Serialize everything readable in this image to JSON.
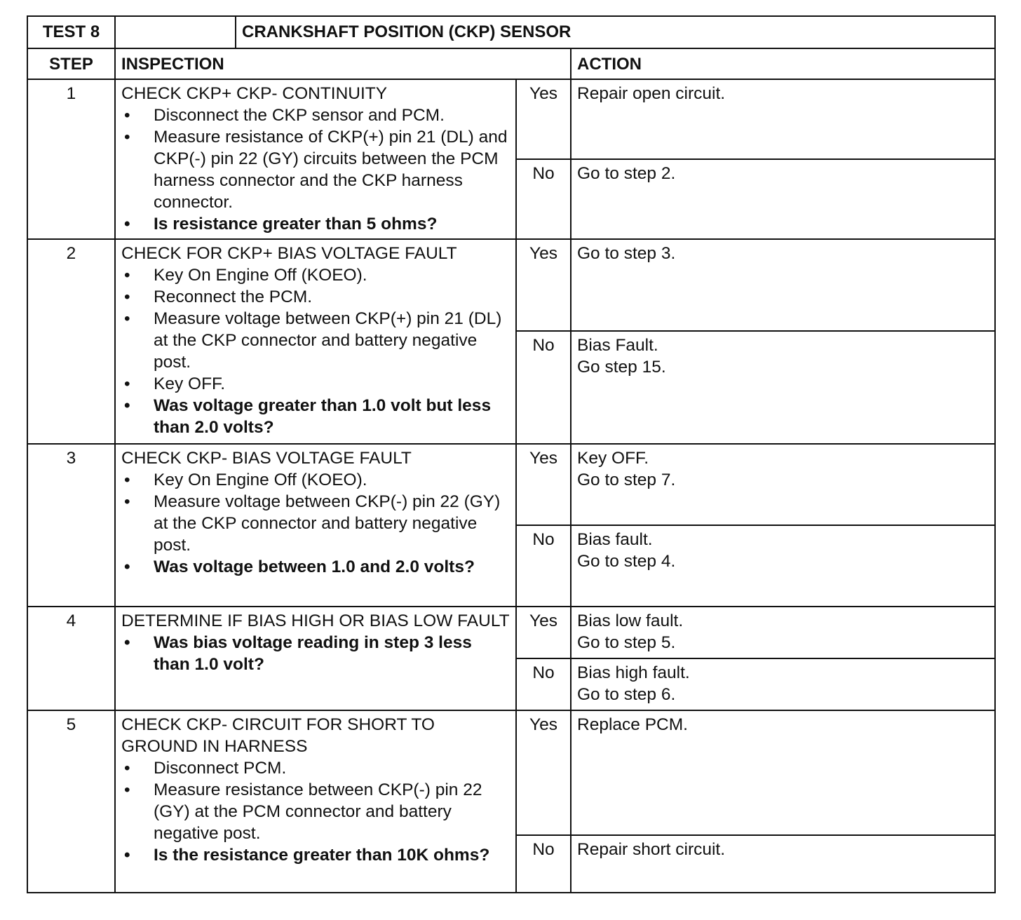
{
  "header": {
    "test": "TEST 8",
    "title": "CRANKSHAFT POSITION (CKP) SENSOR"
  },
  "columns": {
    "step": "STEP",
    "inspection": "INSPECTION",
    "action": "ACTION"
  },
  "steps": [
    {
      "step": "1",
      "title": "CHECK CKP+ CKP- CONTINUITY",
      "bullets": [
        {
          "text": "Disconnect the CKP sensor and PCM.",
          "bold": false
        },
        {
          "text": "Measure resistance of CKP(+) pin 21 (DL) and CKP(-) pin 22 (GY) circuits between the PCM harness connector and the CKP harness connector.",
          "bold": false
        },
        {
          "text": "Is resistance greater than 5 ohms?",
          "bold": true
        }
      ],
      "yes_label": "Yes",
      "yes_action": [
        "Repair open circuit."
      ],
      "no_label": "No",
      "no_action": [
        "Go to step 2."
      ]
    },
    {
      "step": "2",
      "title": "CHECK FOR CKP+ BIAS VOLTAGE FAULT",
      "bullets": [
        {
          "text": "Key On Engine Off (KOEO).",
          "bold": false
        },
        {
          "text": "Reconnect the PCM.",
          "bold": false
        },
        {
          "text": "Measure voltage between CKP(+) pin 21 (DL) at the CKP connector and battery negative post.",
          "bold": false
        },
        {
          "text": "Key OFF.",
          "bold": false
        },
        {
          "text": "Was voltage greater than 1.0 volt but less than 2.0 volts?",
          "bold": true
        }
      ],
      "yes_label": "Yes",
      "yes_action": [
        "Go to step 3."
      ],
      "no_label": "No",
      "no_action": [
        "Bias Fault.",
        "Go step 15."
      ]
    },
    {
      "step": "3",
      "title": "CHECK CKP- BIAS VOLTAGE FAULT",
      "bullets": [
        {
          "text": "Key On Engine Off (KOEO).",
          "bold": false
        },
        {
          "text": "Measure voltage between CKP(-) pin 22 (GY) at the CKP connector and battery negative post.",
          "bold": false
        },
        {
          "text": "Was voltage between 1.0 and 2.0 volts?",
          "bold": true
        }
      ],
      "yes_label": "Yes",
      "yes_action": [
        "Key OFF.",
        "Go to step 7."
      ],
      "no_label": "No",
      "no_action": [
        "Bias fault.",
        "Go to step 4."
      ]
    },
    {
      "step": "4",
      "title": "DETERMINE IF BIAS HIGH OR BIAS LOW FAULT",
      "bullets": [
        {
          "text": "Was bias voltage reading in step 3 less than 1.0 volt?",
          "bold": true
        }
      ],
      "yes_label": "Yes",
      "yes_action": [
        "Bias low fault.",
        "Go to step 5."
      ],
      "no_label": "No",
      "no_action": [
        "Bias high fault.",
        "Go to step 6."
      ]
    },
    {
      "step": "5",
      "title": "CHECK CKP- CIRCUIT FOR SHORT TO GROUND IN HARNESS",
      "bullets": [
        {
          "text": "Disconnect PCM.",
          "bold": false
        },
        {
          "text": "Measure resistance between CKP(-) pin 22 (GY) at the PCM connector and battery negative post.",
          "bold": false
        },
        {
          "text": "Is the resistance greater than 10K ohms?",
          "bold": true
        }
      ],
      "yes_label": "Yes",
      "yes_action": [
        "Replace PCM."
      ],
      "no_label": "No",
      "no_action": [
        "Repair short circuit."
      ]
    }
  ]
}
